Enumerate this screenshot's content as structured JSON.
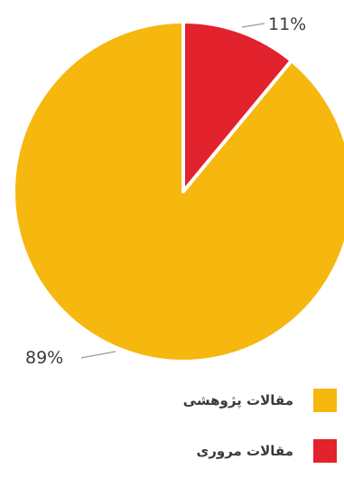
{
  "chart_data": {
    "type": "pie",
    "categories": [
      "مقالات پژوهشی",
      "مقالات مروری"
    ],
    "values": [
      89,
      11
    ],
    "value_labels": [
      "89%",
      "11%"
    ],
    "colors": [
      "#F6B70F",
      "#E2222C"
    ],
    "legend_position": "bottom-right"
  },
  "legend": {
    "items": [
      {
        "label": "مقالات پژوهشی",
        "color": "#F6B70F"
      },
      {
        "label": "مقالات مروری",
        "color": "#E2222C"
      }
    ]
  }
}
